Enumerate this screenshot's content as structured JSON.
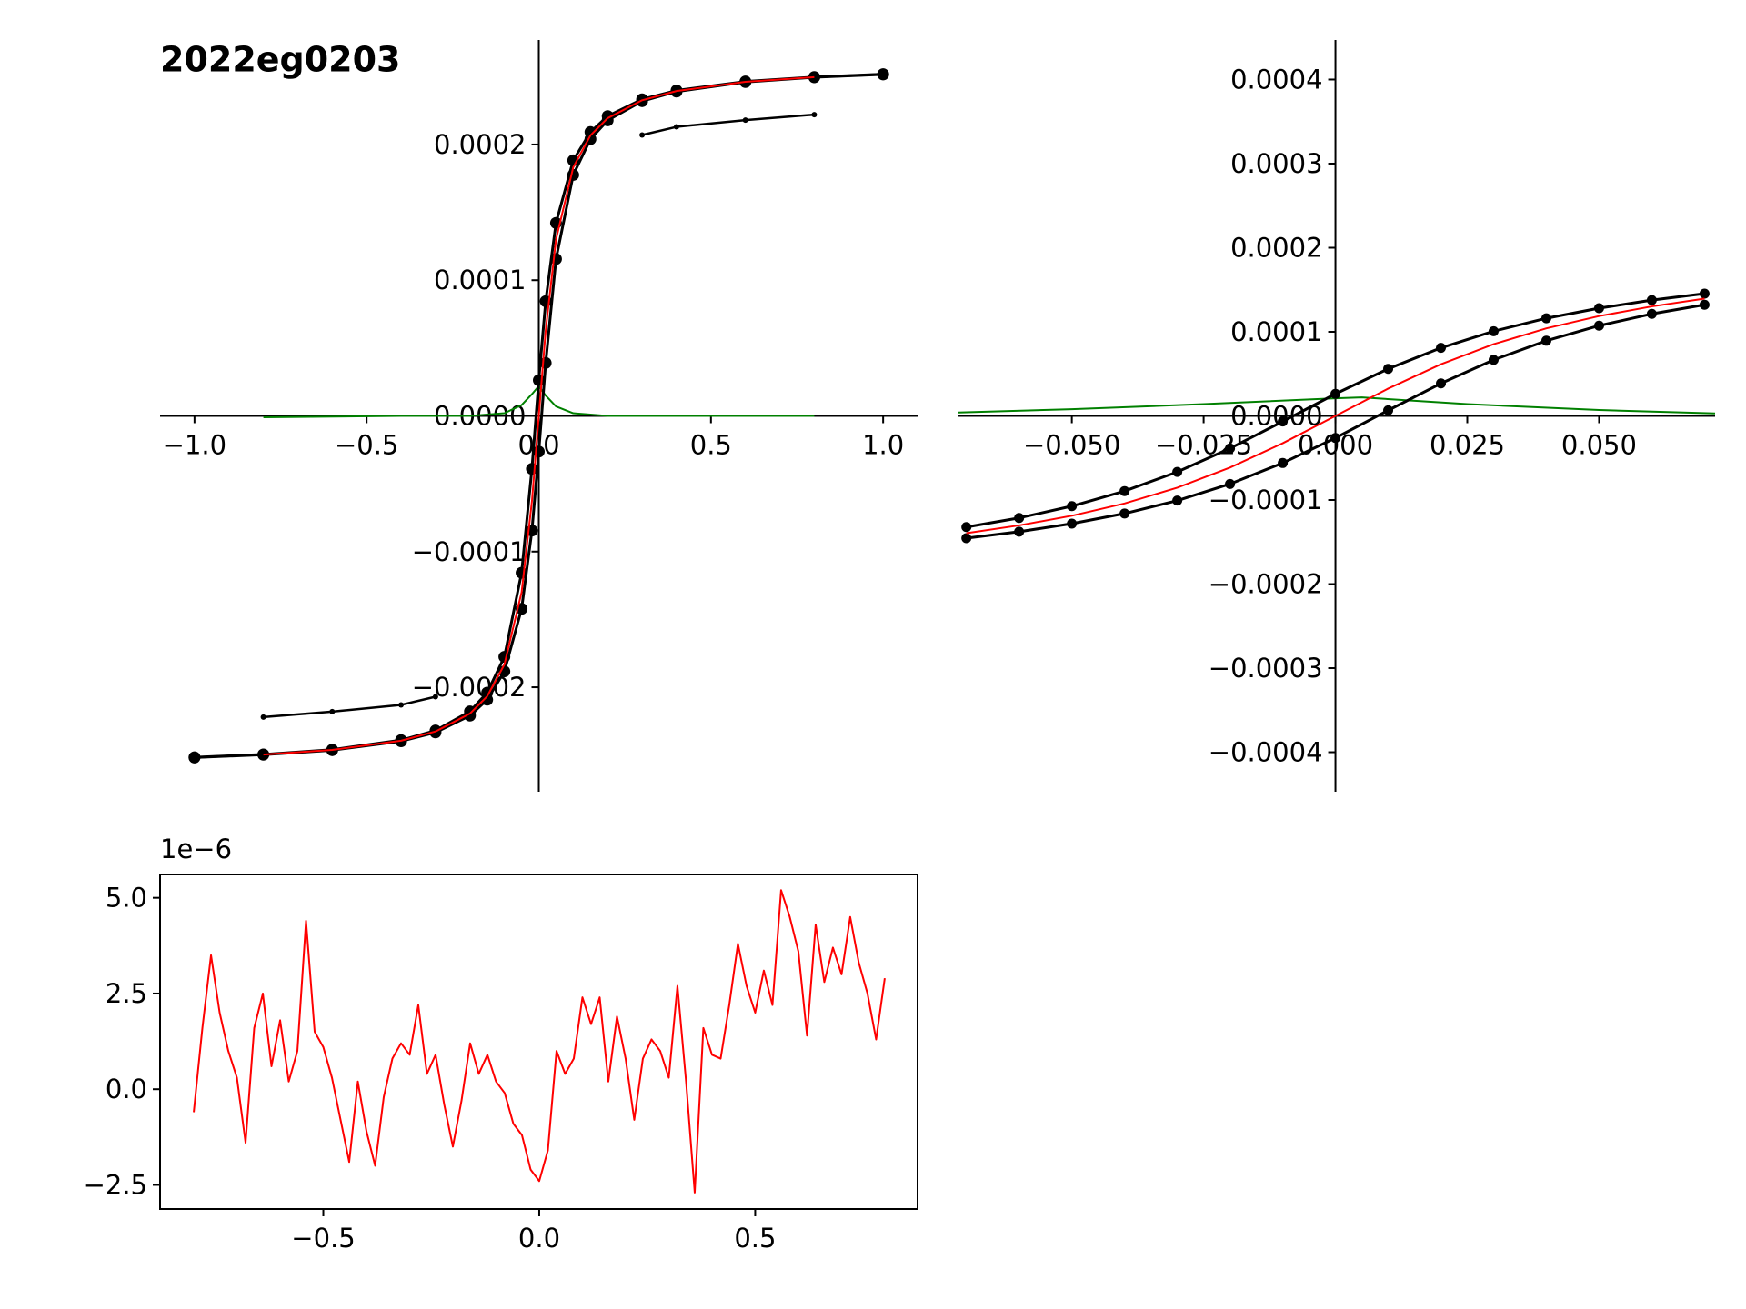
{
  "chart_data": [
    {
      "type": "line",
      "title": "2022eg0203",
      "axes": "centered",
      "xlim": [
        -1.1,
        1.1
      ],
      "ylim": [
        -0.000277,
        0.000277
      ],
      "xticks": [
        {
          "value": -1.0,
          "label": "−1.0"
        },
        {
          "value": -0.5,
          "label": "−0.5"
        },
        {
          "value": 0,
          "label": "0.0"
        },
        0.5,
        {
          "value": 1.0,
          "label": "1.0"
        }
      ],
      "yticks": [
        {
          "value": -0.0002,
          "label": "−0.0002"
        },
        {
          "value": -0.0001,
          "label": "−0.0001"
        },
        {
          "value": 0,
          "label": "0.0000"
        },
        0.0001,
        0.0002
      ],
      "series": [
        {
          "color": "#008000",
          "marker": "none",
          "x": [
            -0.8,
            -0.4,
            -0.2,
            -0.1,
            -0.05,
            -0.02,
            0,
            0.02,
            0.05,
            0.1,
            0.2,
            0.4,
            0.8
          ],
          "values": [
            -1e-06,
            0,
            0,
            2e-06,
            8e-06,
            1.6e-05,
            2.2e-05,
            1.5e-05,
            7e-06,
            2e-06,
            0,
            0,
            0
          ]
        },
        {
          "color": "#000000",
          "marker": "small",
          "x": [
            -0.8,
            -0.6,
            -0.4,
            -0.3,
            0,
            0.3,
            0.4,
            0.6,
            0.8
          ],
          "values": [
            -0.000222,
            -0.000218,
            -0.000213,
            -0.000207,
            null,
            0.000207,
            0.000213,
            0.000218,
            0.000222
          ]
        },
        {
          "color": "#000000",
          "marker": "large",
          "x": [
            -1.0,
            -0.8,
            -0.6,
            -0.4,
            -0.3,
            -0.2,
            -0.15,
            -0.1,
            -0.05,
            -0.02,
            0,
            0.02,
            0.05,
            0.1,
            0.15,
            0.2,
            0.3,
            0.4,
            0.6,
            0.8,
            1.0
          ],
          "values": [
            -0.0002516,
            -0.0002495,
            -0.000246,
            -0.000239,
            -0.0002319,
            -0.0002178,
            -0.000204,
            -0.0001776,
            -0.0001156,
            -3.9e-05,
            2.63e-05,
            8.45e-05,
            0.0001422,
            0.0001883,
            0.0002092,
            0.0002209,
            0.0002333,
            0.0002398,
            0.0002464,
            0.0002497,
            0.0002518
          ]
        },
        {
          "color": "#000000",
          "marker": "large",
          "x": [
            -1.0,
            -0.8,
            -0.6,
            -0.4,
            -0.3,
            -0.2,
            -0.15,
            -0.1,
            -0.05,
            -0.02,
            0,
            0.02,
            0.05,
            0.1,
            0.15,
            0.2,
            0.3,
            0.4,
            0.6,
            0.8,
            1.0
          ],
          "values": [
            -0.0002518,
            -0.0002497,
            -0.0002464,
            -0.0002398,
            -0.0002333,
            -0.0002209,
            -0.0002092,
            -0.0001883,
            -0.0001422,
            -8.45e-05,
            -2.63e-05,
            3.9e-05,
            0.0001156,
            0.0001776,
            0.000204,
            0.0002178,
            0.0002319,
            0.000239,
            0.000246,
            0.0002495,
            0.0002516
          ]
        },
        {
          "color": "#ff0000",
          "marker": "none",
          "x": [
            -0.8,
            -0.6,
            -0.4,
            -0.3,
            -0.2,
            -0.15,
            -0.1,
            -0.05,
            -0.02,
            0,
            0.02,
            0.05,
            0.1,
            0.15,
            0.2,
            0.3,
            0.4,
            0.6,
            0.8
          ],
          "values": [
            -0.0002496,
            -0.0002462,
            -0.0002394,
            -0.0002326,
            -0.0002194,
            -0.0002067,
            -0.0001832,
            -0.00013,
            -6.3e-05,
            0,
            6.3e-05,
            0.00013,
            0.0001832,
            0.0002067,
            0.0002194,
            0.0002326,
            0.0002394,
            0.0002462,
            0.0002496
          ]
        }
      ]
    },
    {
      "type": "line",
      "axes": "centered",
      "xlim": [
        -0.0715,
        0.072
      ],
      "ylim": [
        -0.000447,
        0.000447
      ],
      "xticks": [
        {
          "value": -0.05,
          "label": "−0.050"
        },
        {
          "value": -0.025,
          "label": "−0.025"
        },
        {
          "value": 0,
          "label": "0.000"
        },
        0.025,
        {
          "value": 0.05,
          "label": "0.050"
        }
      ],
      "yticks": [
        {
          "value": -0.0004,
          "label": "−0.0004"
        },
        {
          "value": -0.0003,
          "label": "−0.0003"
        },
        {
          "value": -0.0002,
          "label": "−0.0002"
        },
        {
          "value": -0.0001,
          "label": "−0.0001"
        },
        {
          "value": 0,
          "label": "0.0000"
        },
        0.0001,
        0.0002,
        0.0003,
        0.0004
      ],
      "series": [
        {
          "color": "#008000",
          "marker": "none",
          "x": [
            -0.0715,
            -0.05,
            -0.025,
            0,
            0.005,
            0.025,
            0.05,
            0.072
          ],
          "values": [
            4e-06,
            8e-06,
            1.4e-05,
            2.1e-05,
            2.2e-05,
            1.4e-05,
            7e-06,
            3e-06
          ]
        },
        {
          "color": "#000000",
          "marker": "large",
          "x": [
            -0.07,
            -0.06,
            -0.05,
            -0.04,
            -0.03,
            -0.02,
            -0.01,
            0,
            0.01,
            0.02,
            0.03,
            0.04,
            0.05,
            0.06,
            0.07
          ],
          "values": [
            -0.0001322,
            -0.0001213,
            -0.0001073,
            -8.94e-05,
            -6.66e-05,
            -3.86e-05,
            -6.6e-06,
            2.62e-05,
            5.6e-05,
            8.09e-05,
            0.0001007,
            0.0001161,
            0.0001281,
            0.0001377,
            0.0001454
          ]
        },
        {
          "color": "#000000",
          "marker": "large",
          "x": [
            -0.07,
            -0.06,
            -0.05,
            -0.04,
            -0.03,
            -0.02,
            -0.01,
            0,
            0.01,
            0.02,
            0.03,
            0.04,
            0.05,
            0.06,
            0.07
          ],
          "values": [
            -0.0001454,
            -0.0001377,
            -0.0001281,
            -0.0001161,
            -0.0001007,
            -8.09e-05,
            -5.6e-05,
            -2.62e-05,
            6.6e-06,
            3.86e-05,
            6.66e-05,
            8.94e-05,
            0.0001073,
            0.0001213,
            0.0001322
          ]
        },
        {
          "color": "#ff0000",
          "marker": "none",
          "x": [
            -0.07,
            -0.06,
            -0.05,
            -0.04,
            -0.03,
            -0.02,
            -0.01,
            0,
            0.01,
            0.02,
            0.03,
            0.04,
            0.05,
            0.06,
            0.07
          ],
          "values": [
            -0.0001394,
            -0.0001302,
            -0.0001187,
            -0.0001041,
            -8.53e-05,
            -6.14e-05,
            -3.25e-05,
            0,
            3.25e-05,
            6.14e-05,
            8.53e-05,
            0.0001041,
            0.0001187,
            0.0001302,
            0.0001394
          ]
        }
      ]
    },
    {
      "type": "line",
      "axes": "box",
      "offset_label": "1e−6",
      "xlim": [
        -0.878,
        0.876
      ],
      "ylim": [
        -3.13,
        5.61
      ],
      "xticks": [
        {
          "value": -0.5,
          "label": "−0.5"
        },
        {
          "value": 0,
          "label": "0.0"
        },
        0.5
      ],
      "yticks": [
        {
          "value": -2.5,
          "label": "−2.5"
        },
        {
          "value": 0,
          "label": "0.0"
        },
        2.5,
        {
          "value": 5,
          "label": "5.0"
        }
      ],
      "series": [
        {
          "color": "#ff0000",
          "marker": "none",
          "x": [
            -0.8,
            -0.78,
            -0.76,
            -0.74,
            -0.72,
            -0.7,
            -0.68,
            -0.66,
            -0.64,
            -0.62,
            -0.6,
            -0.58,
            -0.56,
            -0.54,
            -0.52,
            -0.5,
            -0.48,
            -0.46,
            -0.44,
            -0.42,
            -0.4,
            -0.38,
            -0.36,
            -0.34,
            -0.32,
            -0.3,
            -0.28,
            -0.26,
            -0.24,
            -0.22,
            -0.2,
            -0.18,
            -0.16,
            -0.14,
            -0.12,
            -0.1,
            -0.08,
            -0.06,
            -0.04,
            -0.02,
            0,
            0.02,
            0.04,
            0.06,
            0.08,
            0.1,
            0.12,
            0.14,
            0.16,
            0.18,
            0.2,
            0.22,
            0.24,
            0.26,
            0.28,
            0.3,
            0.32,
            0.34,
            0.36,
            0.38,
            0.4,
            0.42,
            0.44,
            0.46,
            0.48,
            0.5,
            0.52,
            0.54,
            0.56,
            0.58,
            0.6,
            0.62,
            0.64,
            0.66,
            0.68,
            0.7,
            0.72,
            0.74,
            0.76,
            0.78,
            0.8
          ],
          "values": [
            -0.6,
            1.6,
            3.5,
            2.0,
            1.0,
            0.3,
            -1.4,
            1.6,
            2.5,
            0.6,
            1.8,
            0.2,
            1.0,
            4.4,
            1.5,
            1.1,
            0.3,
            -0.8,
            -1.9,
            0.2,
            -1.1,
            -2.0,
            -0.2,
            0.8,
            1.2,
            0.9,
            2.2,
            0.4,
            0.9,
            -0.4,
            -1.5,
            -0.3,
            1.2,
            0.4,
            0.9,
            0.2,
            -0.1,
            -0.9,
            -1.2,
            -2.1,
            -2.4,
            -1.6,
            1.0,
            0.4,
            0.8,
            2.4,
            1.7,
            2.4,
            0.2,
            1.9,
            0.8,
            -0.8,
            0.8,
            1.3,
            1.0,
            0.3,
            2.7,
            0.2,
            -2.7,
            1.6,
            0.9,
            0.8,
            2.2,
            3.8,
            2.7,
            2.0,
            3.1,
            2.2,
            5.2,
            4.5,
            3.6,
            1.4,
            4.3,
            2.8,
            3.7,
            3.0,
            4.5,
            3.3,
            2.5,
            1.3,
            2.9
          ]
        }
      ]
    }
  ]
}
